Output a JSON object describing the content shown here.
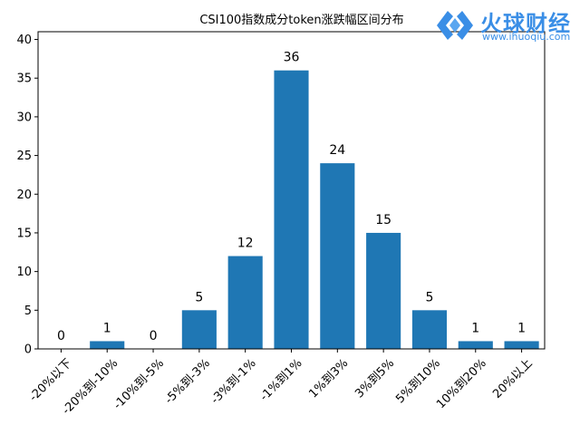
{
  "chart_data": {
    "type": "bar",
    "title": "CSI100指数成分token涨跌幅区间分布",
    "xlabel": "",
    "ylabel": "",
    "categories": [
      "-20%以下",
      "-20%到-10%",
      "-10%到-5%",
      "-5%到-3%",
      "-3%到-1%",
      "-1%到1%",
      "1%到3%",
      "3%到5%",
      "5%到10%",
      "10%到20%",
      "20%以上"
    ],
    "values": [
      0,
      1,
      0,
      5,
      12,
      36,
      24,
      15,
      5,
      1,
      1
    ],
    "data_labels": [
      "0",
      "1",
      "0",
      "5",
      "12",
      "36",
      "24",
      "15",
      "5",
      "1",
      "1"
    ],
    "ylim": [
      0,
      41
    ],
    "yticks": [
      0,
      5,
      10,
      15,
      20,
      25,
      30,
      35,
      40
    ],
    "grid": false,
    "legend": "none",
    "bar_color": "#1f77b4"
  },
  "watermark": {
    "name": "火球财经",
    "url": "www.ihuoqiu.com",
    "color": "#3a8ee6"
  }
}
